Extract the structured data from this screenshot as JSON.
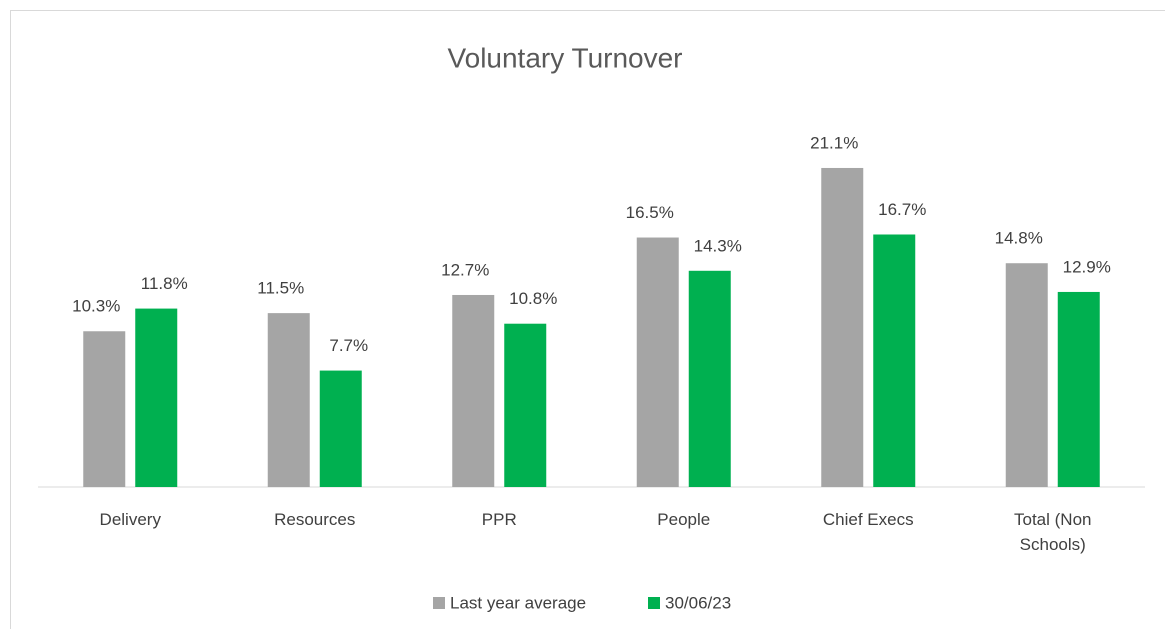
{
  "chart_data": {
    "type": "bar",
    "title": "Voluntary Turnover",
    "categories": [
      "Delivery",
      "Resources",
      "PPR",
      "People",
      "Chief Execs",
      "Total (Non Schools)"
    ],
    "series": [
      {
        "name": "Last year average",
        "color": "#a5a5a5",
        "values": [
          10.3,
          11.5,
          12.7,
          16.5,
          21.1,
          14.8
        ],
        "value_labels": [
          "10.3%",
          "11.5%",
          "12.7%",
          "16.5%",
          "21.1%",
          "14.8%"
        ]
      },
      {
        "name": "30/06/23",
        "color": "#00b050",
        "values": [
          11.8,
          7.7,
          10.8,
          14.3,
          16.7,
          12.9
        ],
        "value_labels": [
          "11.8%",
          "7.7%",
          "10.8%",
          "14.3%",
          "16.7%",
          "12.9%"
        ]
      }
    ],
    "ylim": [
      0,
      25
    ],
    "grid": false,
    "legend": "bottom"
  }
}
